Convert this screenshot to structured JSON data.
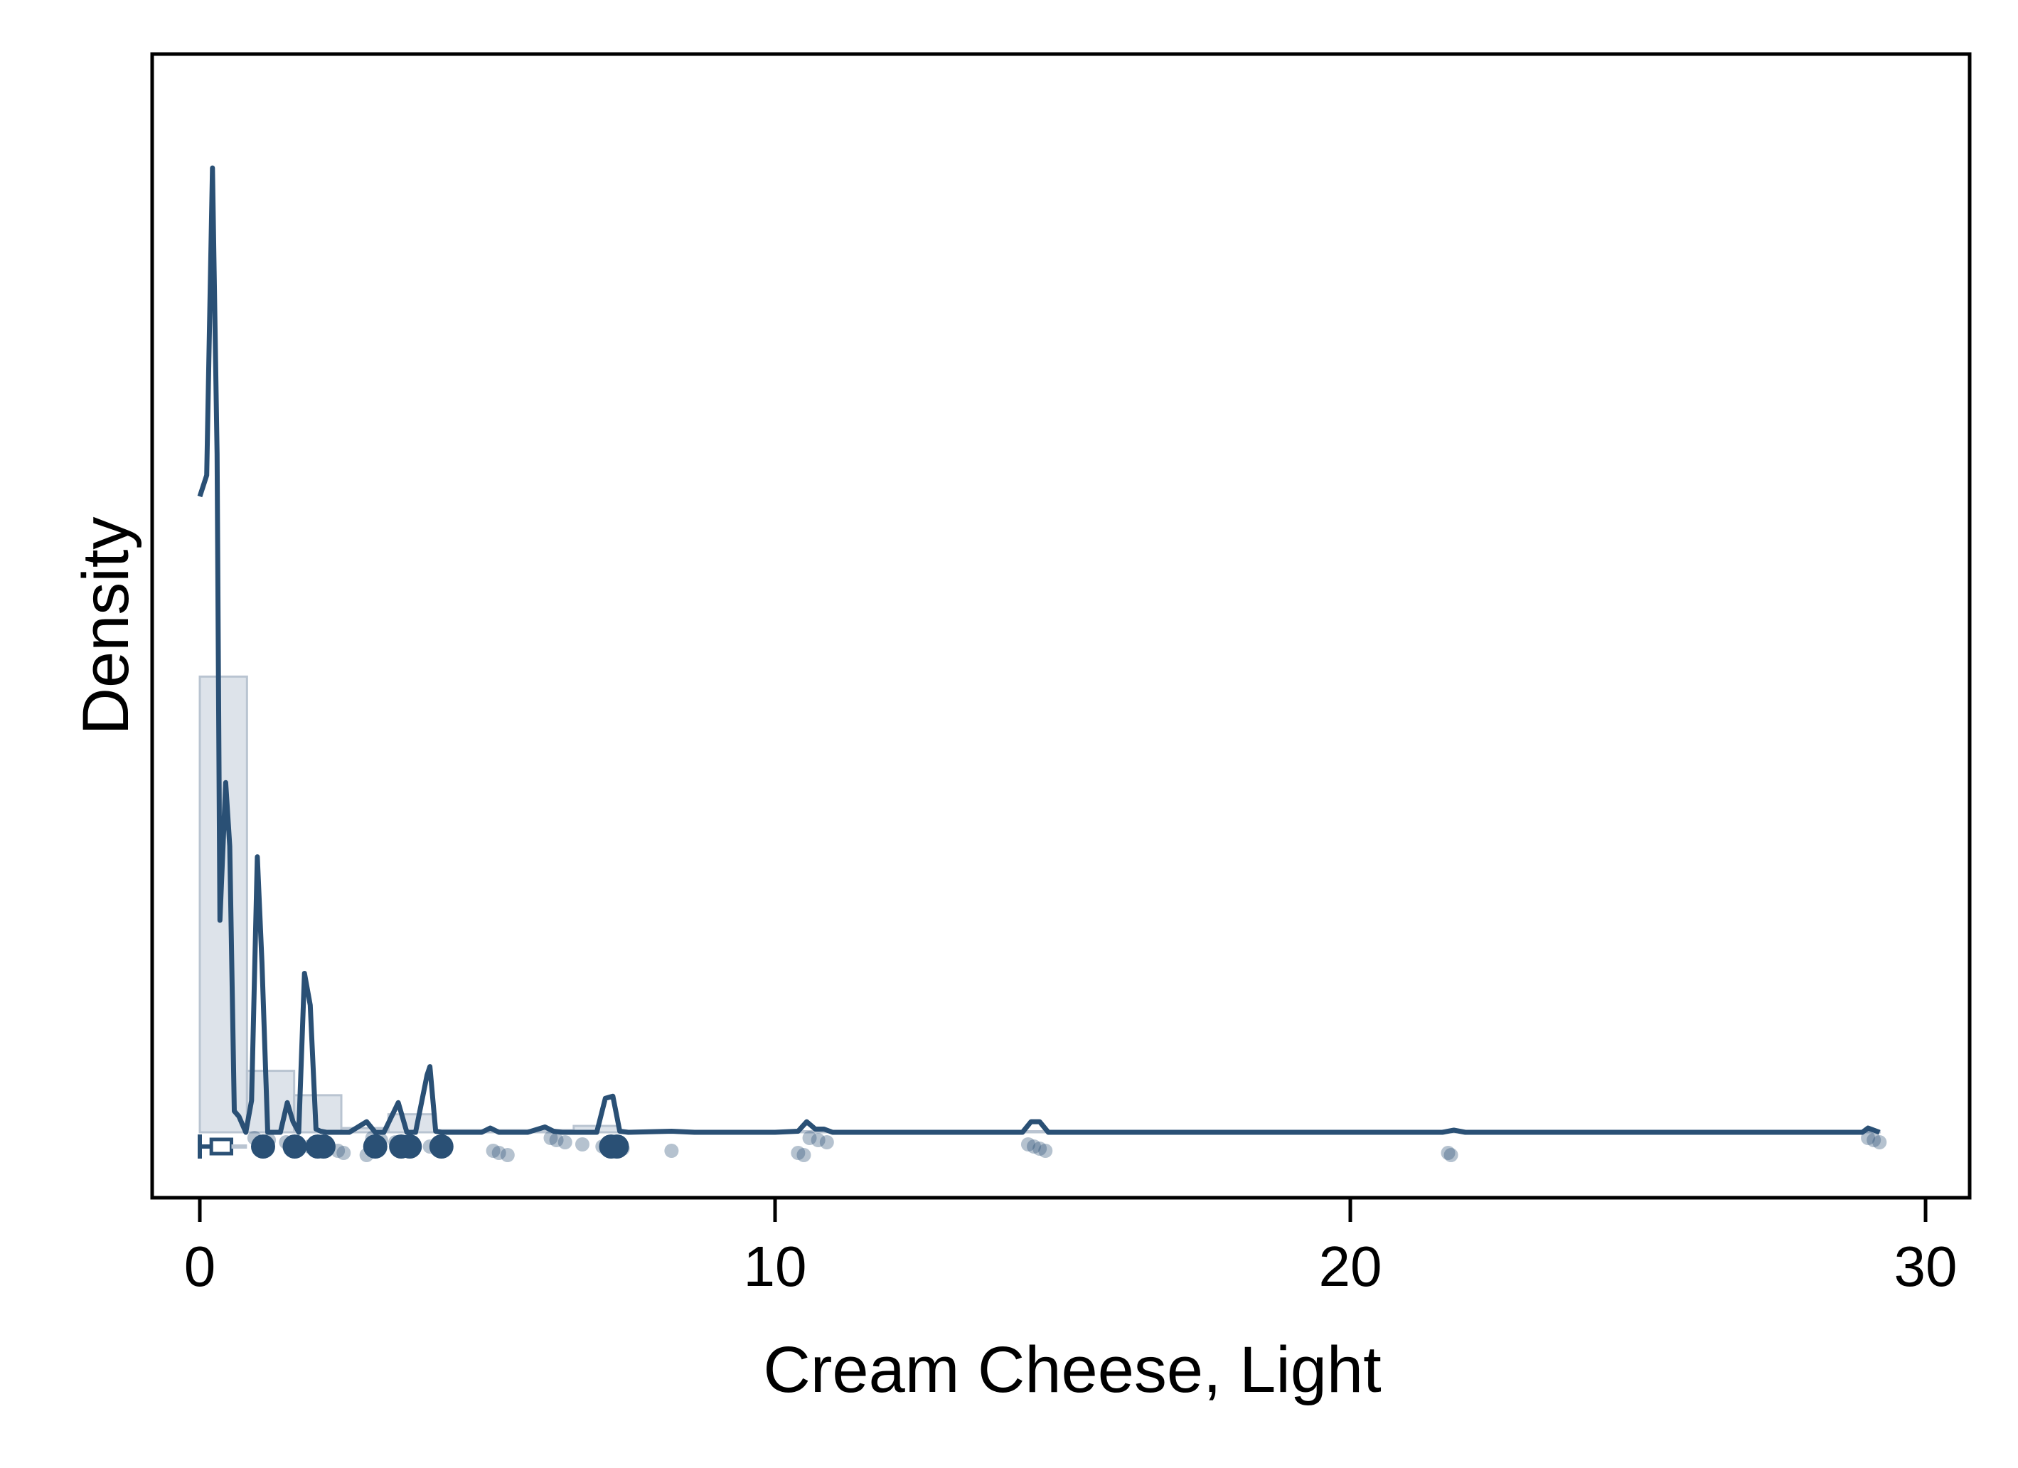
{
  "chart_data": {
    "type": "area",
    "xlabel": "Cream Cheese, Light",
    "ylabel": "Density",
    "xlim": [
      -0.8,
      30.8
    ],
    "x_ticks": [
      0,
      10,
      20,
      30
    ],
    "x_tick_labels": [
      "0",
      "10",
      "20",
      "30"
    ],
    "y_ticks_shown": false,
    "grid": false,
    "legend": "none",
    "ylim": [
      0,
      1.0
    ],
    "histogram": {
      "bins": [
        {
          "x0": 0.0,
          "x1": 0.82,
          "density": 0.43
        },
        {
          "x0": 0.82,
          "x1": 1.64,
          "density": 0.058
        },
        {
          "x0": 1.64,
          "x1": 2.46,
          "density": 0.035
        },
        {
          "x0": 2.46,
          "x1": 3.28,
          "density": 0.004
        },
        {
          "x0": 3.28,
          "x1": 4.1,
          "density": 0.017
        },
        {
          "x0": 4.1,
          "x1": 6.5,
          "density": 0.002
        },
        {
          "x0": 6.5,
          "x1": 7.3,
          "density": 0.006
        },
        {
          "x0": 7.3,
          "x1": 29.2,
          "density": 0.001
        }
      ]
    },
    "density_curve": {
      "x": [
        0.0,
        0.12,
        0.22,
        0.3,
        0.35,
        0.45,
        0.52,
        0.6,
        0.68,
        0.8,
        0.9,
        1.0,
        1.08,
        1.18,
        1.28,
        1.4,
        1.52,
        1.62,
        1.72,
        1.82,
        1.92,
        2.02,
        2.1,
        2.2,
        2.35,
        2.6,
        2.9,
        3.05,
        3.2,
        3.45,
        3.6,
        3.75,
        3.95,
        4.0,
        4.1,
        4.2,
        4.3,
        4.6,
        4.9,
        5.05,
        5.2,
        5.35,
        5.7,
        6.0,
        6.15,
        6.3,
        6.45,
        6.9,
        7.05,
        7.18,
        7.3,
        7.45,
        8.2,
        8.6,
        10.0,
        10.4,
        10.55,
        10.7,
        10.85,
        11.0,
        14.3,
        14.45,
        14.6,
        14.75,
        21.6,
        21.8,
        22.0,
        28.9,
        29.0,
        29.2
      ],
      "y": [
        0.6,
        0.62,
        0.91,
        0.64,
        0.2,
        0.33,
        0.27,
        0.02,
        0.015,
        0.0,
        0.03,
        0.26,
        0.16,
        0.0,
        0.0,
        0.0,
        0.028,
        0.01,
        0.0,
        0.15,
        0.12,
        0.003,
        0.001,
        0.0,
        0.0,
        0.0,
        0.01,
        0.0,
        0.0,
        0.028,
        0.0,
        0.0,
        0.054,
        0.062,
        0.001,
        0.0,
        0.0,
        0.0,
        0.0,
        0.004,
        0.0,
        0.0,
        0.0,
        0.005,
        0.001,
        0.0,
        0.0,
        0.0,
        0.032,
        0.034,
        0.001,
        0.0,
        0.001,
        0.0,
        0.0,
        0.001,
        0.01,
        0.003,
        0.003,
        0.0,
        0.0,
        0.01,
        0.01,
        0.0,
        0.0,
        0.002,
        0.0,
        0.0,
        0.004,
        0.0
      ]
    },
    "data_points": {
      "large": [
        1.1,
        1.65,
        2.05,
        2.15,
        3.05,
        3.5,
        3.65,
        4.2,
        7.15,
        7.25
      ],
      "small": [
        0.95,
        1.2,
        1.5,
        1.6,
        1.9,
        2.2,
        2.4,
        2.5,
        2.9,
        3.0,
        3.15,
        3.4,
        3.7,
        4.0,
        4.15,
        5.1,
        5.2,
        5.35,
        6.1,
        6.2,
        6.35,
        6.65,
        7.0,
        7.35,
        8.2,
        10.4,
        10.5,
        10.6,
        10.75,
        10.9,
        14.4,
        14.5,
        14.6,
        14.7,
        21.7,
        21.75,
        29.0,
        29.1,
        29.2
      ]
    },
    "boxplot": {
      "median": 0.2,
      "q3": 0.55,
      "whisker_high": 0.82
    },
    "colors": {
      "line": "#2a5075",
      "fill": "#dde3ea",
      "fill_stroke": "#b9c4d1",
      "points": "#2a5075"
    }
  }
}
